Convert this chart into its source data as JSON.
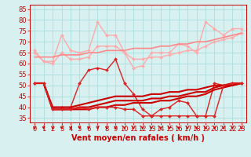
{
  "x": [
    0,
    1,
    2,
    3,
    4,
    5,
    6,
    7,
    8,
    9,
    10,
    11,
    12,
    13,
    14,
    15,
    16,
    17,
    18,
    19,
    20,
    21,
    22,
    23
  ],
  "series": [
    {
      "name": "rafales_max_light",
      "color": "#ffaaaa",
      "linewidth": 1.0,
      "marker": "D",
      "markersize": 2.0,
      "linestyle": "-",
      "data": [
        66,
        61,
        61,
        73,
        66,
        65,
        66,
        79,
        73,
        73,
        65,
        58,
        59,
        65,
        65,
        65,
        69,
        68,
        65,
        79,
        76,
        73,
        76,
        76
      ]
    },
    {
      "name": "rafales_mean_light",
      "color": "#ffaaaa",
      "linewidth": 1.0,
      "marker": "D",
      "markersize": 2.0,
      "linestyle": "-",
      "data": [
        65,
        61,
        60,
        65,
        62,
        62,
        63,
        68,
        68,
        68,
        65,
        62,
        62,
        63,
        63,
        64,
        65,
        66,
        66,
        68,
        70,
        71,
        72,
        74
      ]
    },
    {
      "name": "rafales_trend",
      "color": "#ff8888",
      "linewidth": 1.2,
      "marker": null,
      "markersize": 0,
      "linestyle": "-",
      "data": [
        63,
        63,
        63,
        64,
        64,
        64,
        65,
        65,
        66,
        66,
        66,
        67,
        67,
        67,
        68,
        68,
        69,
        69,
        70,
        70,
        71,
        72,
        73,
        74
      ]
    },
    {
      "name": "vent_max",
      "color": "#dd2222",
      "linewidth": 1.0,
      "marker": "D",
      "markersize": 2.0,
      "linestyle": "-",
      "data": [
        51,
        51,
        40,
        40,
        40,
        51,
        57,
        58,
        57,
        62,
        51,
        46,
        39,
        36,
        39,
        40,
        43,
        42,
        36,
        36,
        51,
        50,
        51,
        51
      ]
    },
    {
      "name": "vent_mean_upper",
      "color": "#cc0000",
      "linewidth": 1.5,
      "marker": null,
      "markersize": 0,
      "linestyle": "-",
      "data": [
        51,
        51,
        40,
        40,
        40,
        41,
        42,
        43,
        44,
        45,
        45,
        45,
        45,
        46,
        46,
        47,
        47,
        48,
        48,
        49,
        50,
        50,
        51,
        51
      ]
    },
    {
      "name": "vent_mean_lower",
      "color": "#cc0000",
      "linewidth": 1.5,
      "marker": null,
      "markersize": 0,
      "linestyle": "-",
      "data": [
        51,
        51,
        39,
        39,
        39,
        39,
        39,
        40,
        40,
        41,
        41,
        42,
        42,
        42,
        43,
        43,
        44,
        45,
        45,
        46,
        48,
        49,
        50,
        51
      ]
    },
    {
      "name": "vent_trend",
      "color": "#cc0000",
      "linewidth": 1.5,
      "marker": null,
      "markersize": 0,
      "linestyle": "-",
      "data": [
        51,
        51,
        39,
        39,
        39,
        40,
        40,
        41,
        42,
        43,
        43,
        43,
        43,
        44,
        44,
        45,
        45,
        46,
        47,
        47,
        49,
        50,
        50,
        51
      ]
    },
    {
      "name": "vent_min",
      "color": "#dd2222",
      "linewidth": 1.0,
      "marker": "D",
      "markersize": 2.0,
      "linestyle": "-",
      "data": [
        51,
        51,
        39,
        39,
        39,
        40,
        39,
        40,
        40,
        40,
        39,
        39,
        36,
        36,
        36,
        36,
        36,
        36,
        36,
        36,
        36,
        50,
        51,
        51
      ]
    }
  ],
  "wind_arrows_x": [
    0,
    1,
    2,
    3,
    4,
    5,
    6,
    7,
    8,
    9,
    10,
    11,
    12,
    13,
    14,
    15,
    16,
    17,
    18,
    19,
    20,
    21,
    22,
    23
  ],
  "arrow_color": "#cc0000",
  "xlabel": "Vent moyen/en rafales ( km/h )",
  "ylim": [
    33,
    87
  ],
  "yticks": [
    35,
    40,
    45,
    50,
    55,
    60,
    65,
    70,
    75,
    80,
    85
  ],
  "xlim": [
    -0.5,
    23.5
  ],
  "xticks": [
    0,
    1,
    2,
    3,
    4,
    5,
    6,
    7,
    8,
    9,
    10,
    11,
    12,
    13,
    14,
    15,
    16,
    17,
    18,
    19,
    20,
    21,
    22,
    23
  ],
  "background_color": "#d8f0f0",
  "grid_color": "#aadddd",
  "tick_color": "#cc0000",
  "xlabel_color": "#cc0000",
  "xlabel_fontsize": 7.0,
  "tick_fontsize": 6.0
}
